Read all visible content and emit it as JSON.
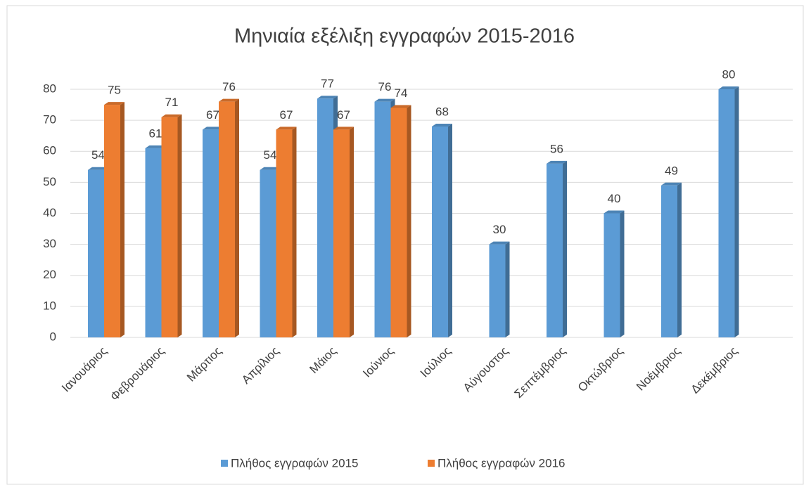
{
  "chart_data": {
    "type": "bar",
    "title": "Μηνιαία εξέλιξη εγγραφών 2015-2016",
    "categories": [
      "Ιανουάριος",
      "Φεβρουάριος",
      "Μάρτιος",
      "Απρίλιος",
      "Μάιος",
      "Ιούνιος",
      "Ιούλιος",
      "Αύγουστος",
      "Σεπτέμβριος",
      "Οκτώβριος",
      "Νοέμβριος",
      "Δεκέμβριος"
    ],
    "series": [
      {
        "name": "Πλήθος εγγραφών 2015",
        "color": "#5b9bd5",
        "values": [
          54,
          61,
          67,
          54,
          77,
          76,
          68,
          30,
          56,
          40,
          49,
          80
        ]
      },
      {
        "name": "Πλήθος εγγραφών 2016",
        "color": "#ed7d31",
        "values": [
          75,
          71,
          76,
          67,
          67,
          74,
          null,
          null,
          null,
          null,
          null,
          null
        ]
      }
    ],
    "ylim": [
      0,
      80
    ],
    "yticks": [
      0,
      10,
      20,
      30,
      40,
      50,
      60,
      70,
      80
    ],
    "grid": true,
    "legend": "bottom"
  }
}
